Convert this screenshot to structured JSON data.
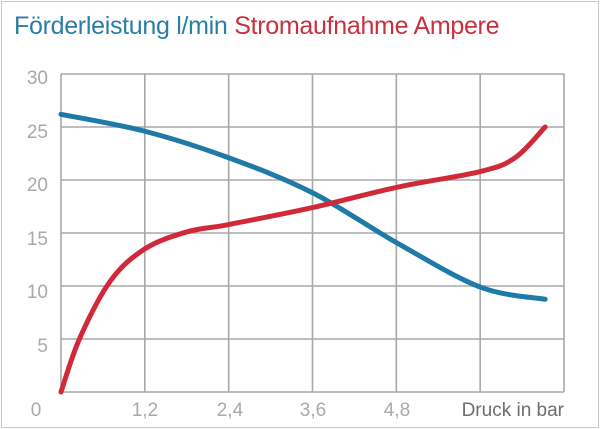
{
  "chart_data": {
    "type": "line",
    "title_parts": [
      "Förderleistung l/min",
      "Stromaufnahme Ampere"
    ],
    "xlabel": "Druck in bar",
    "ylabel": "",
    "xlim": [
      0,
      7.2
    ],
    "ylim": [
      0,
      30
    ],
    "x_ticks": [
      "0",
      "1,2",
      "2,4",
      "3,6",
      "4,8"
    ],
    "y_ticks": [
      "5",
      "10",
      "15",
      "20",
      "25",
      "30"
    ],
    "grid": true,
    "series": [
      {
        "name": "Förderleistung l/min",
        "color": "#1f7aa8",
        "x": [
          0,
          1.2,
          2.4,
          3.6,
          4.8,
          6.0,
          6.93
        ],
        "y": [
          26.2,
          24.6,
          22.1,
          18.8,
          14.1,
          9.9,
          8.75
        ]
      },
      {
        "name": "Stromaufnahme Ampere",
        "color": "#d02a3a",
        "x": [
          0,
          0.27,
          0.71,
          1.2,
          1.8,
          2.4,
          3.6,
          4.8,
          6.0,
          6.5,
          6.93
        ],
        "y": [
          0,
          5.1,
          10.5,
          13.5,
          15.1,
          15.8,
          17.4,
          19.3,
          20.8,
          22.1,
          25
        ]
      }
    ]
  }
}
